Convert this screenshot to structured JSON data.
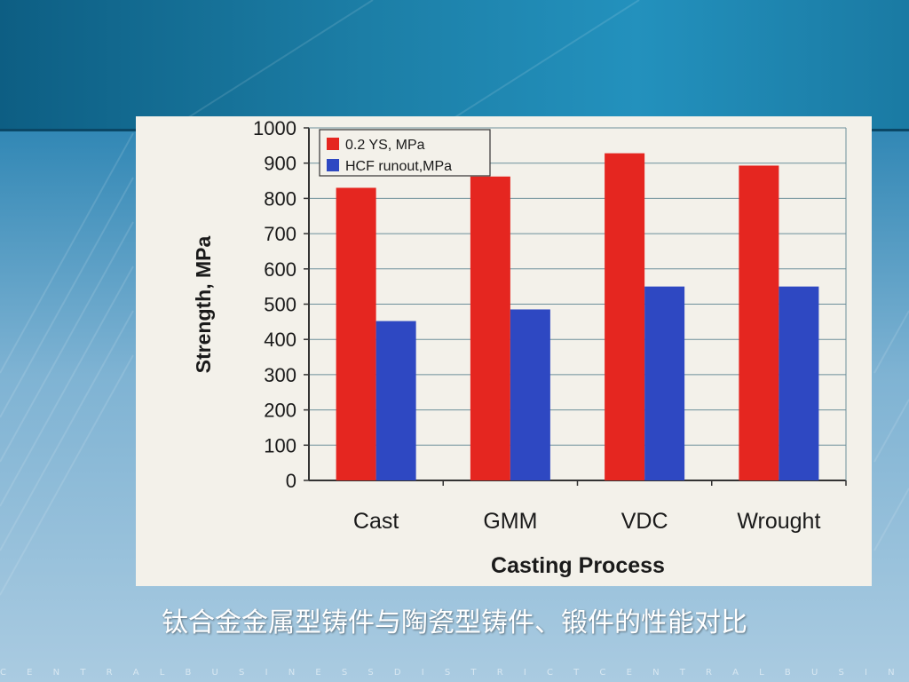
{
  "slide": {
    "caption": "钛合金金属型铸件与陶瓷型铸件、锻件的性能对比",
    "footer_text": "C E N T R A L B U S I N E S S D I S T R I C T C E N T R A L B U S I N E S S D I S T R I C T C E N T R A"
  },
  "chart_data": {
    "type": "bar",
    "categories": [
      "Cast",
      "GMM",
      "VDC",
      "Wrought"
    ],
    "series": [
      {
        "name": "0.2 YS, MPa",
        "values": [
          830,
          862,
          928,
          893
        ],
        "color": "#e52620"
      },
      {
        "name": "HCF runout,MPa",
        "values": [
          452,
          485,
          550,
          550
        ],
        "color": "#2e48c2"
      }
    ],
    "xlabel": "Casting Process",
    "ylabel": "Strength, MPa",
    "ylim": [
      0,
      1000
    ],
    "yticks": [
      0,
      100,
      200,
      300,
      400,
      500,
      600,
      700,
      800,
      900,
      1000
    ],
    "grid": true,
    "legend_position": "top-left"
  }
}
